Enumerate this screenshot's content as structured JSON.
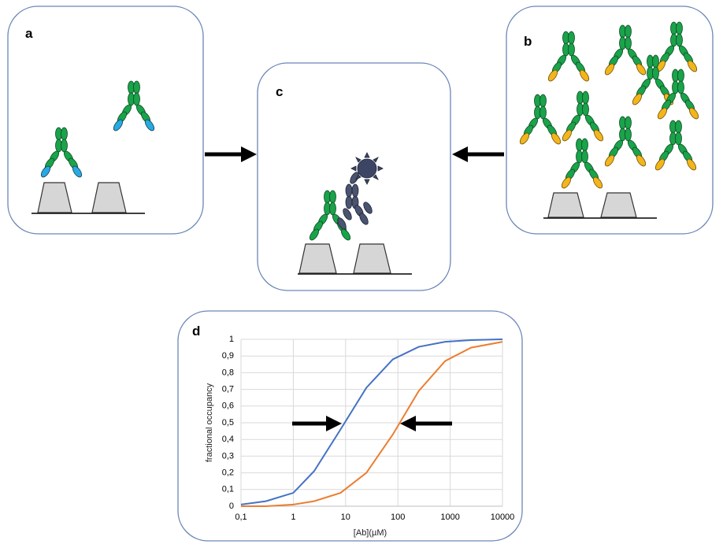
{
  "panels": [
    {
      "label": "a"
    },
    {
      "label": "b"
    },
    {
      "label": "c"
    },
    {
      "label": "d"
    }
  ],
  "chart_data": {
    "type": "line",
    "x_label": "[Ab](µM)",
    "y_label": "fractional occupancy",
    "x": [
      0.1,
      0.3,
      1,
      2.5,
      8,
      25,
      80,
      250,
      800,
      2500,
      10000
    ],
    "series": [
      {
        "color": "#4472c4",
        "values": [
          0.01,
          0.03,
          0.08,
          0.21,
          0.46,
          0.71,
          0.88,
          0.955,
          0.985,
          0.995,
          1
        ]
      },
      {
        "color": "#ed7d31",
        "values": [
          0,
          0,
          0.01,
          0.03,
          0.08,
          0.2,
          0.43,
          0.69,
          0.87,
          0.95,
          0.985
        ]
      }
    ],
    "xlog": true,
    "grid": true,
    "xlim": [
      0.1,
      10000
    ],
    "ylim": [
      0,
      1
    ],
    "xticks": [
      {
        "value": 0.1,
        "label": "0,1"
      },
      1,
      10,
      100,
      1000,
      10000
    ],
    "yticks": [
      0,
      {
        "value": 0.1,
        "label": "0,1"
      },
      {
        "value": 0.2,
        "label": "0,2"
      },
      {
        "value": 0.3,
        "label": "0,3"
      },
      {
        "value": 0.4,
        "label": "0,4"
      },
      {
        "value": 0.5,
        "label": "0,5"
      },
      {
        "value": 0.6,
        "label": "0,6"
      },
      {
        "value": 0.7,
        "label": "0,7"
      },
      {
        "value": 0.8,
        "label": "0,8"
      },
      {
        "value": 0.9,
        "label": "0,9"
      },
      1
    ]
  }
}
